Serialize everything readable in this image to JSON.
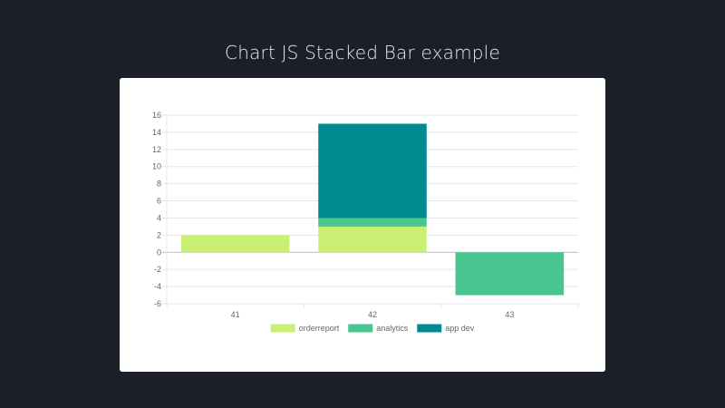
{
  "page": {
    "title": "Chart JS Stacked Bar example"
  },
  "colors": {
    "background": "#1b1f27",
    "card": "#ffffff",
    "grid": "#e5e5e5",
    "zero_line": "#bdbdbd",
    "tick_text": "#666666"
  },
  "chart_data": {
    "type": "bar",
    "stacked": true,
    "categories": [
      "41",
      "42",
      "43"
    ],
    "series": [
      {
        "name": "orderreport",
        "color": "#c9f075",
        "values": [
          2,
          3,
          0
        ]
      },
      {
        "name": "analytics",
        "color": "#48c690",
        "values": [
          0,
          1,
          -5
        ]
      },
      {
        "name": "app dev",
        "color": "#008b93",
        "values": [
          0,
          11,
          0
        ]
      }
    ],
    "ylim": [
      -6,
      16
    ],
    "yticks": [
      16,
      14,
      12,
      10,
      8,
      6,
      4,
      2,
      0,
      -2,
      -4,
      -6
    ],
    "grid": true,
    "legend_position": "bottom"
  }
}
